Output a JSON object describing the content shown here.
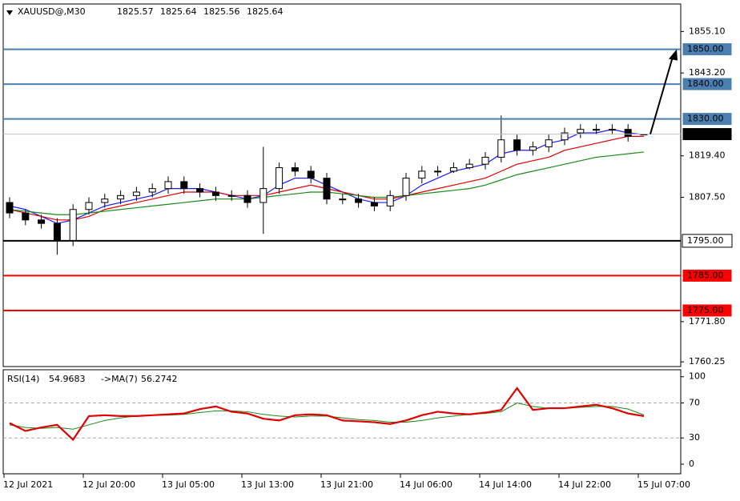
{
  "chart_data": [
    {
      "type": "candlestick",
      "symbol": "XAUUSD@,M30",
      "categories": [
        "12 Jul 2021",
        null,
        null,
        null,
        null,
        "12 Jul 20:00",
        null,
        null,
        null,
        null,
        "13 Jul 05:00",
        null,
        null,
        null,
        null,
        "13 Jul 13:00",
        null,
        null,
        null,
        null,
        "13 Jul 21:00",
        null,
        null,
        null,
        null,
        "14 Jul 06:00",
        null,
        null,
        null,
        null,
        "14 Jul 14:00",
        null,
        null,
        null,
        null,
        "14 Jul 22:00",
        null,
        null,
        null,
        null,
        "15 Jul 07:00"
      ],
      "open": [
        1806,
        1803,
        1801,
        1800,
        1795,
        1804,
        1806,
        1807,
        1808,
        1809,
        1810,
        1812,
        1810,
        1809,
        1808,
        1808,
        1806,
        1810,
        1816,
        1815,
        1813,
        1807,
        1807,
        1806,
        1805,
        1808,
        1813,
        1815,
        1815,
        1816,
        1817,
        1819,
        1824,
        1821,
        1822,
        1824,
        1826,
        1827,
        1827,
        1827,
        1825.57
      ],
      "high": [
        1807.5,
        1804,
        1802.5,
        1801.5,
        1805.5,
        1807.5,
        1808.5,
        1809.5,
        1810.5,
        1811.5,
        1813.5,
        1813.5,
        1811.5,
        1810.5,
        1809.5,
        1809.5,
        1822,
        1817.5,
        1817.5,
        1816.5,
        1814.5,
        1808.5,
        1808.5,
        1807.5,
        1809.5,
        1814.5,
        1816.5,
        1816.5,
        1817.5,
        1818.5,
        1820.5,
        1831,
        1825.5,
        1823.5,
        1825.5,
        1827.5,
        1828.5,
        1828.5,
        1828.5,
        1828.5,
        1825.64
      ],
      "low": [
        1801.5,
        1799.5,
        1798.5,
        1791,
        1793.5,
        1802.5,
        1804.5,
        1805.5,
        1806.5,
        1807.5,
        1808.5,
        1808.5,
        1807.5,
        1806.5,
        1806.5,
        1804.5,
        1797,
        1808.5,
        1813.5,
        1811.5,
        1805.5,
        1805.5,
        1804.5,
        1803.5,
        1803.5,
        1806.5,
        1811.5,
        1813.5,
        1814.5,
        1815.5,
        1815.5,
        1817.5,
        1819.5,
        1819.5,
        1820.5,
        1822.5,
        1824.5,
        1825.5,
        1825.5,
        1823.5,
        1825.56
      ],
      "close": [
        1803,
        1801,
        1800,
        1795,
        1804,
        1806,
        1807,
        1808,
        1809,
        1810,
        1812,
        1810,
        1809,
        1808,
        1808,
        1806,
        1810,
        1816,
        1815,
        1813,
        1807,
        1807,
        1806,
        1805,
        1808,
        1813,
        1815,
        1815,
        1816,
        1817,
        1819,
        1824,
        1821,
        1822,
        1824,
        1826,
        1827,
        1827,
        1827,
        1825,
        1825.64
      ],
      "overlays": [
        {
          "color": "#1a1aff",
          "values": [
            1805,
            1804,
            1802,
            1800,
            1801,
            1803,
            1805,
            1806,
            1807,
            1808,
            1810,
            1810,
            1810,
            1809,
            1808,
            1807,
            1808,
            1811,
            1813,
            1813,
            1811,
            1809,
            1807,
            1806,
            1806,
            1808,
            1811,
            1813,
            1815,
            1816,
            1817,
            1820,
            1821,
            1821,
            1823,
            1824,
            1826,
            1826,
            1827,
            1826,
            1825.5
          ]
        },
        {
          "color": "#e00000",
          "values": [
            1804,
            1803,
            1802,
            1801,
            1801,
            1802,
            1804,
            1805,
            1806,
            1807,
            1808,
            1809,
            1809,
            1809,
            1808,
            1808,
            1808,
            1809,
            1810,
            1811,
            1810,
            1809,
            1808,
            1807,
            1807,
            1808,
            1809,
            1810,
            1811,
            1812,
            1813,
            1815,
            1817,
            1818,
            1819,
            1821,
            1822,
            1823,
            1824,
            1825,
            1825
          ]
        },
        {
          "color": "#1a8a1a",
          "values": [
            1804,
            1803.5,
            1803,
            1802.5,
            1802.5,
            1803,
            1803.5,
            1804,
            1804.5,
            1805,
            1805.5,
            1806,
            1806.5,
            1807,
            1807,
            1807,
            1807.5,
            1808,
            1808.5,
            1809,
            1809,
            1808.5,
            1808,
            1807.5,
            1807.5,
            1808,
            1808.5,
            1809,
            1809.5,
            1810,
            1811,
            1812.5,
            1814,
            1815,
            1816,
            1817,
            1818,
            1819,
            1819.5,
            1820,
            1820.5
          ]
        }
      ],
      "ylim": [
        1758.9,
        1863
      ],
      "yticks": [
        {
          "value": 1855.1,
          "label": "1855.10"
        },
        {
          "value": 1843.2,
          "label": "1843.20"
        },
        {
          "value": 1819.4,
          "label": "1819.40"
        },
        {
          "value": 1807.5,
          "label": "1807.50"
        },
        {
          "value": 1771.8,
          "label": "1771.80"
        },
        1760.25
      ],
      "levels": [
        {
          "value": 1850,
          "label": "1850.00",
          "color": "#4a7fb0",
          "label_fill": "#4a7fb0",
          "label_text": "#ffffff"
        },
        {
          "value": 1840,
          "label": "1840.00",
          "color": "#4a7fb0",
          "label_fill": "#4a7fb0",
          "label_text": "#ffffff"
        },
        {
          "value": 1830,
          "label": "1830.00",
          "color": "#4a7fb0",
          "label_fill": "#4a7fb0",
          "label_text": "#ffffff"
        },
        {
          "value": 1825.64,
          "color": "#c0c0c0",
          "label_fill": "#000000",
          "label_text": "#ffffff"
        },
        {
          "value": 1795,
          "label": "1795.00",
          "color": "#000000",
          "label_fill": "#ffffff",
          "label_text": "#000000"
        },
        {
          "value": 1785,
          "label": "1785.00",
          "color": "#ff0000",
          "label_fill": "#ff0000",
          "label_text": "#ffffff"
        },
        {
          "value": 1775,
          "label": "1775.00",
          "color": "#ff0000",
          "label_fill": "#ff0000",
          "label_text": "#ffffff"
        }
      ]
    },
    {
      "type": "line",
      "series": [
        {
          "name": "RSI(14)",
          "color": "#e00000",
          "values": [
            47,
            38,
            42,
            45,
            28,
            55,
            56,
            55,
            55,
            56,
            57,
            58,
            63,
            66,
            60,
            58,
            52,
            50,
            56,
            57,
            56,
            50,
            49,
            48,
            46,
            50,
            56,
            60,
            58,
            57,
            59,
            62,
            87,
            62,
            64,
            64,
            66,
            68,
            64,
            58,
            54.9683
          ]
        },
        {
          "name": "->MA(7)",
          "color": "#1a8a1a",
          "values": [
            45,
            42,
            41,
            42,
            40,
            45,
            50,
            53,
            55,
            56,
            56,
            57,
            59,
            61,
            61,
            60,
            57,
            55,
            54,
            55,
            55,
            53,
            51,
            50,
            48,
            48,
            50,
            53,
            55,
            57,
            58,
            60,
            70,
            66,
            64,
            64,
            65,
            66,
            66,
            63,
            56.2742
          ]
        }
      ],
      "ylim": [
        -11,
        108
      ],
      "yticks": [
        100,
        70,
        30,
        0
      ],
      "levels": [
        70,
        30
      ]
    }
  ]
}
